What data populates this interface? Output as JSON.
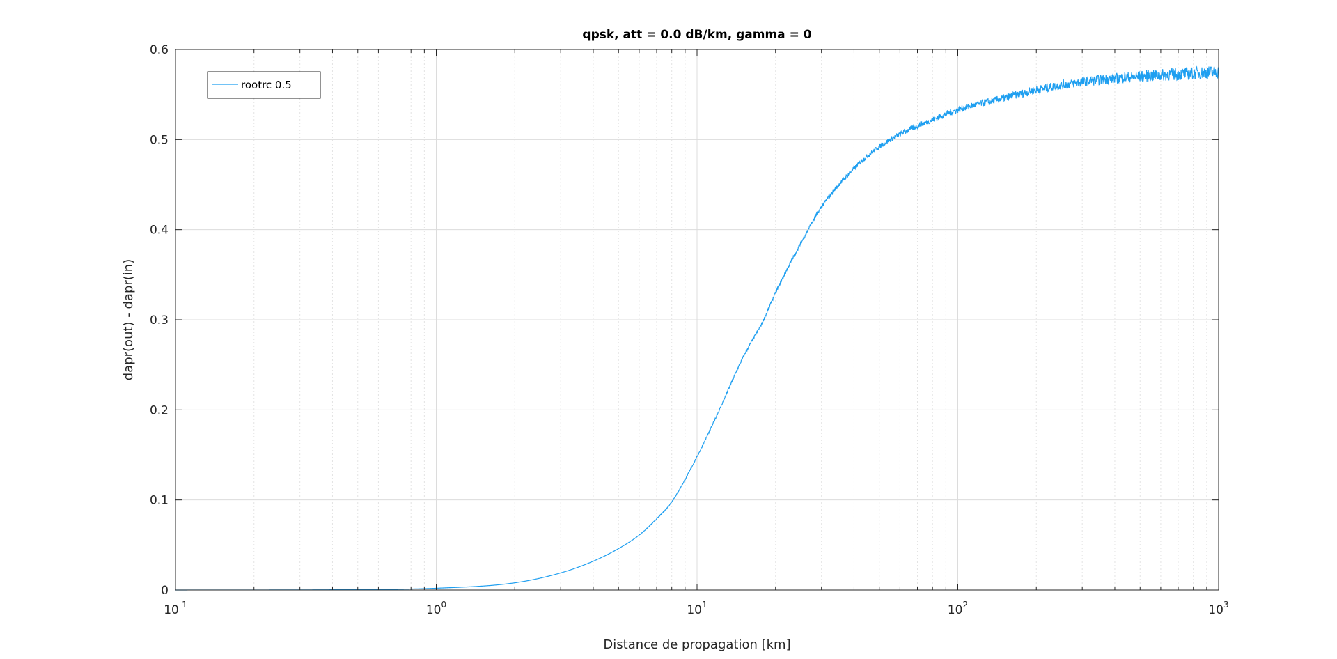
{
  "chart_data": {
    "type": "line",
    "title": "qpsk, att = 0.0 dB/km, gamma = 0",
    "xlabel": "Distance de propagation [km]",
    "ylabel": "dapr(out) - dapr(in)",
    "x_scale": "log",
    "xlim": [
      0.1,
      1000
    ],
    "ylim": [
      0,
      0.6
    ],
    "x_ticks": [
      {
        "base": "10",
        "exp": "-1"
      },
      {
        "base": "10",
        "exp": "0"
      },
      {
        "base": "10",
        "exp": "1"
      },
      {
        "base": "10",
        "exp": "2"
      },
      {
        "base": "10",
        "exp": "3"
      }
    ],
    "y_ticks": [
      "0",
      "0.1",
      "0.2",
      "0.3",
      "0.4",
      "0.5",
      "0.6"
    ],
    "grid": true,
    "minor_grid": true,
    "legend": {
      "position": "top-left"
    },
    "series": [
      {
        "name": "rootrc 0.5",
        "color": "#1f9ff0",
        "x": [
          0.1,
          0.5,
          1,
          2,
          3,
          4,
          5,
          6,
          7,
          8,
          10,
          12,
          15,
          18,
          20,
          25,
          30,
          40,
          50,
          60,
          80,
          100,
          150,
          200,
          300,
          500,
          1000
        ],
        "y": [
          0.0,
          0.0005,
          0.002,
          0.008,
          0.019,
          0.032,
          0.046,
          0.061,
          0.079,
          0.098,
          0.148,
          0.196,
          0.258,
          0.3,
          0.33,
          0.385,
          0.425,
          0.468,
          0.492,
          0.506,
          0.522,
          0.533,
          0.546,
          0.555,
          0.564,
          0.57,
          0.575
        ]
      }
    ]
  }
}
